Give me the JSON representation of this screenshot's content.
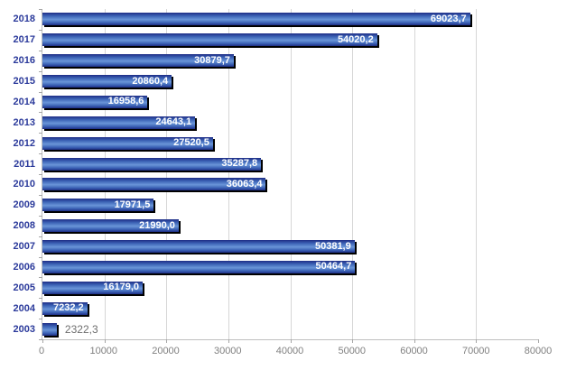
{
  "chart_data": {
    "type": "bar",
    "orientation": "horizontal",
    "title": "",
    "xlabel": "",
    "ylabel": "",
    "legend": "none",
    "grid": "vertical",
    "xlim": [
      0,
      80000
    ],
    "x_ticks": [
      0,
      10000,
      20000,
      30000,
      40000,
      50000,
      60000,
      70000,
      80000
    ],
    "x_tick_labels": [
      "0",
      "10000",
      "20000",
      "30000",
      "40000",
      "50000",
      "60000",
      "70000",
      "80000"
    ],
    "categories": [
      "2018",
      "2017",
      "2016",
      "2015",
      "2014",
      "2013",
      "2012",
      "2011",
      "2010",
      "2009",
      "2008",
      "2007",
      "2006",
      "2005",
      "2004",
      "2003"
    ],
    "values": [
      69023.7,
      54020.2,
      30879.7,
      20860.4,
      16958.6,
      24643.1,
      27520.5,
      35287.8,
      36063.4,
      17971.5,
      21990.0,
      50381.9,
      50464.7,
      16179.0,
      7232.2,
      2322.3
    ],
    "value_labels": [
      "69023,7",
      "54020,2",
      "30879,7",
      "20860,4",
      "16958,6",
      "24643,1",
      "27520,5",
      "35287,8",
      "36063,4",
      "17971,5",
      "21990,0",
      "50381,9",
      "50464,7",
      "16179,0",
      "7232,2",
      "2322,3"
    ],
    "label_positions": [
      "inside",
      "inside",
      "inside",
      "inside",
      "inside",
      "inside",
      "inside",
      "inside",
      "inside",
      "inside",
      "inside",
      "inside",
      "inside",
      "inside",
      "inside",
      "outside"
    ]
  },
  "style": {
    "background": "#ffffff",
    "bar_dark": "#1e2d85",
    "bar_mid": "#3b62b5",
    "bar_light": "#6a95d8",
    "bar_shadow": "#000000",
    "gridline": "#d6d6d6",
    "axis_line": "#bfbfbf",
    "tick": "#a6a6a6",
    "axis_label_color": "#808080",
    "year_label_color": "#2b3a9b",
    "value_label_inside_color": "#ffffff",
    "value_label_outside_color": "#6e6e6e"
  }
}
